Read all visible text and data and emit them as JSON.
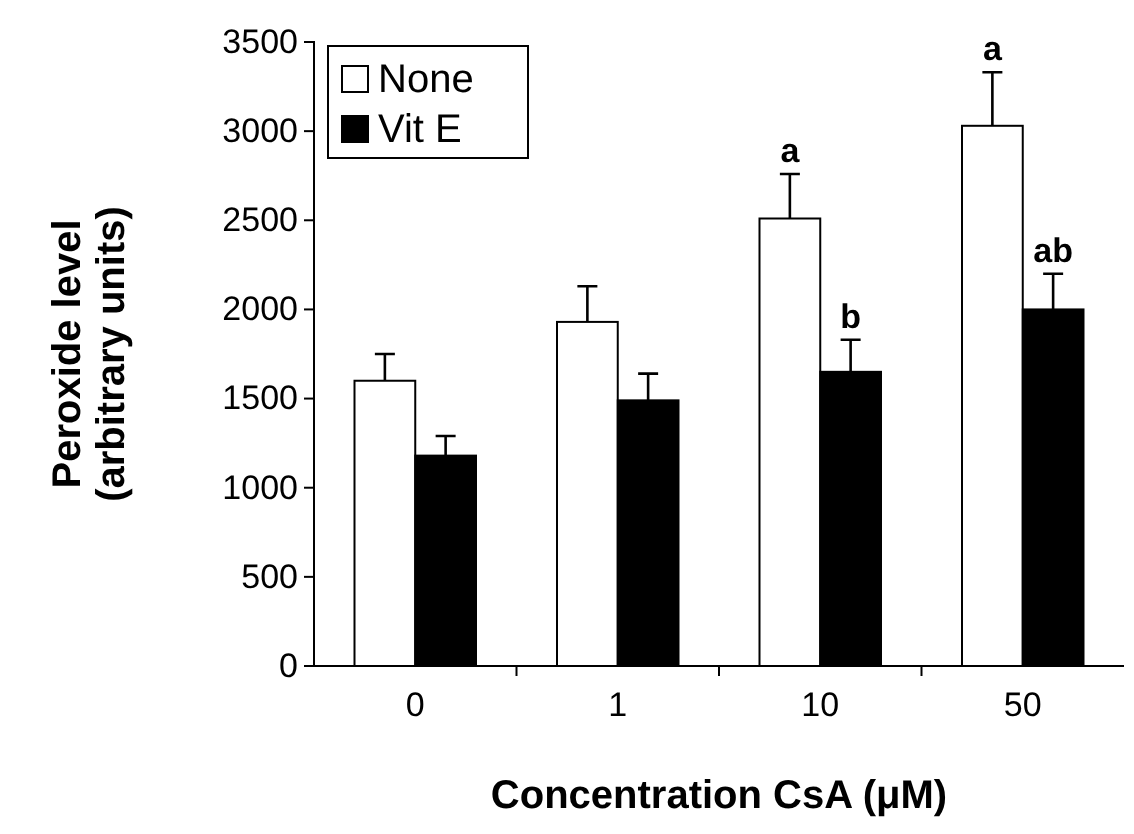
{
  "chart_data": {
    "type": "bar",
    "xlabel": "Concentration CsA (μM)",
    "ylabel": "Peroxide level\n(arbitrary units)",
    "categories": [
      "0",
      "1",
      "10",
      "50"
    ],
    "series": [
      {
        "name": "None",
        "color": "#ffffff",
        "values": [
          1600,
          1930,
          2510,
          3030
        ],
        "errors": [
          [
            1600,
            1750
          ],
          [
            1930,
            2130
          ],
          [
            2510,
            2760
          ],
          [
            3030,
            3330
          ]
        ]
      },
      {
        "name": "Vit E",
        "color": "#000000",
        "values": [
          1180,
          1490,
          1650,
          2000
        ],
        "errors": [
          [
            1180,
            1290
          ],
          [
            1490,
            1640
          ],
          [
            1650,
            1830
          ],
          [
            2000,
            2200
          ]
        ]
      }
    ],
    "ylim": [
      0,
      3500
    ],
    "yticks": [
      0,
      500,
      1000,
      1500,
      2000,
      2500,
      3000,
      3500
    ],
    "legend": "top left",
    "annotations": [
      {
        "text": "a",
        "x": "10",
        "y": 2510
      },
      {
        "text": "b",
        "x": "10",
        "y": 1650
      },
      {
        "text": "a",
        "x": "50",
        "y": 3030
      },
      {
        "text": "ab",
        "x": "50",
        "y": 2000
      }
    ]
  }
}
